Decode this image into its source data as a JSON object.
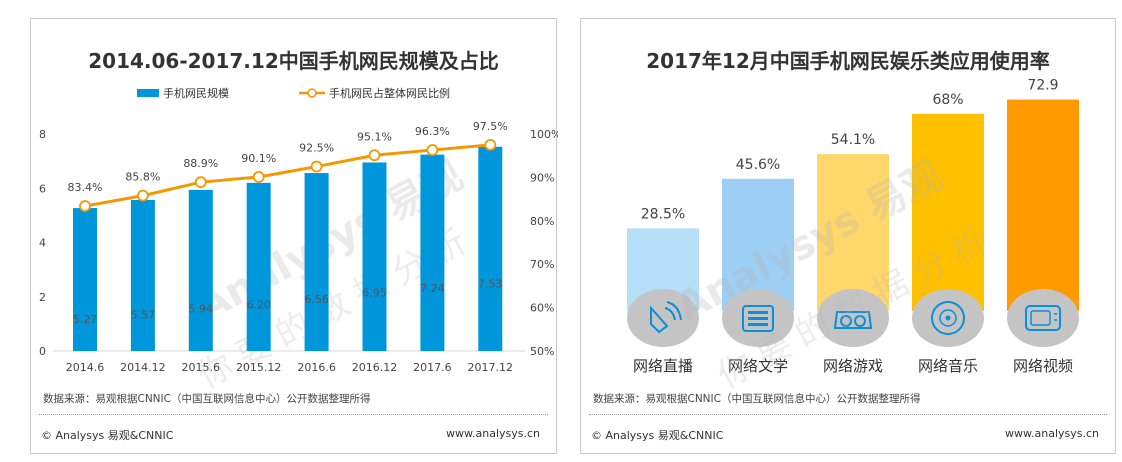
{
  "chart_data": [
    {
      "type": "bar+line",
      "title": "2014.06-2017.12中国手机网民规模及占比",
      "categories": [
        "2014.6",
        "2014.12",
        "2015.6",
        "2015.12",
        "2016.6",
        "2016.12",
        "2017.6",
        "2017.12"
      ],
      "series": [
        {
          "name": "手机网民规模",
          "type": "bar",
          "axis": "left",
          "values": [
            5.27,
            5.57,
            5.94,
            6.2,
            6.56,
            6.95,
            7.24,
            7.53
          ],
          "labels": [
            "5.27",
            "5.57",
            "5.94",
            "6.20",
            "6.56",
            "6.95",
            "7.24",
            "7.53"
          ],
          "color": "#0096dc"
        },
        {
          "name": "手机网民占整体网民比例",
          "type": "line",
          "axis": "right",
          "values": [
            83.4,
            85.8,
            88.9,
            90.1,
            92.5,
            95.1,
            96.3,
            97.5
          ],
          "labels": [
            "83.4%",
            "85.8%",
            "88.9%",
            "90.1%",
            "92.5%",
            "95.1%",
            "96.3%",
            "97.5%"
          ],
          "color": "#f39800"
        }
      ],
      "yleft": {
        "range": [
          0,
          8
        ],
        "ticks": [
          "0",
          "2",
          "4",
          "6",
          "8"
        ]
      },
      "yright": {
        "range": [
          50,
          100
        ],
        "ticks": [
          "50%",
          "60%",
          "70%",
          "80%",
          "90%",
          "100%"
        ]
      },
      "legend": "top-center",
      "source": "数据来源：易观根据CNNIC（中国互联网信息中心）公开数据整理所得",
      "copyright": "© Analysys 易观&CNNIC",
      "url": "www.analysys.cn"
    },
    {
      "type": "bar",
      "title": "2017年12月中国手机网民娱乐类应用使用率",
      "categories": [
        "网络直播",
        "网络文学",
        "网络游戏",
        "网络音乐",
        "网络视频"
      ],
      "values": [
        28.5,
        45.6,
        54.1,
        68,
        72.9
      ],
      "labels": [
        "28.5%",
        "45.6%",
        "54.1%",
        "68%",
        "72.9"
      ],
      "colors": [
        "#b5def7",
        "#9dcff4",
        "#ffd76a",
        "#ffc000",
        "#ff9a00"
      ],
      "icons": [
        "live-broadcast-icon",
        "literature-icon",
        "game-icon",
        "music-icon",
        "video-icon"
      ],
      "source": "数据来源：易观根据CNNIC（中国互联网信息中心）公开数据整理所得",
      "copyright": "© Analysys 易观&CNNIC",
      "url": "www.analysys.cn"
    }
  ],
  "watermark": "Analysys 易观 你要的数据分析"
}
